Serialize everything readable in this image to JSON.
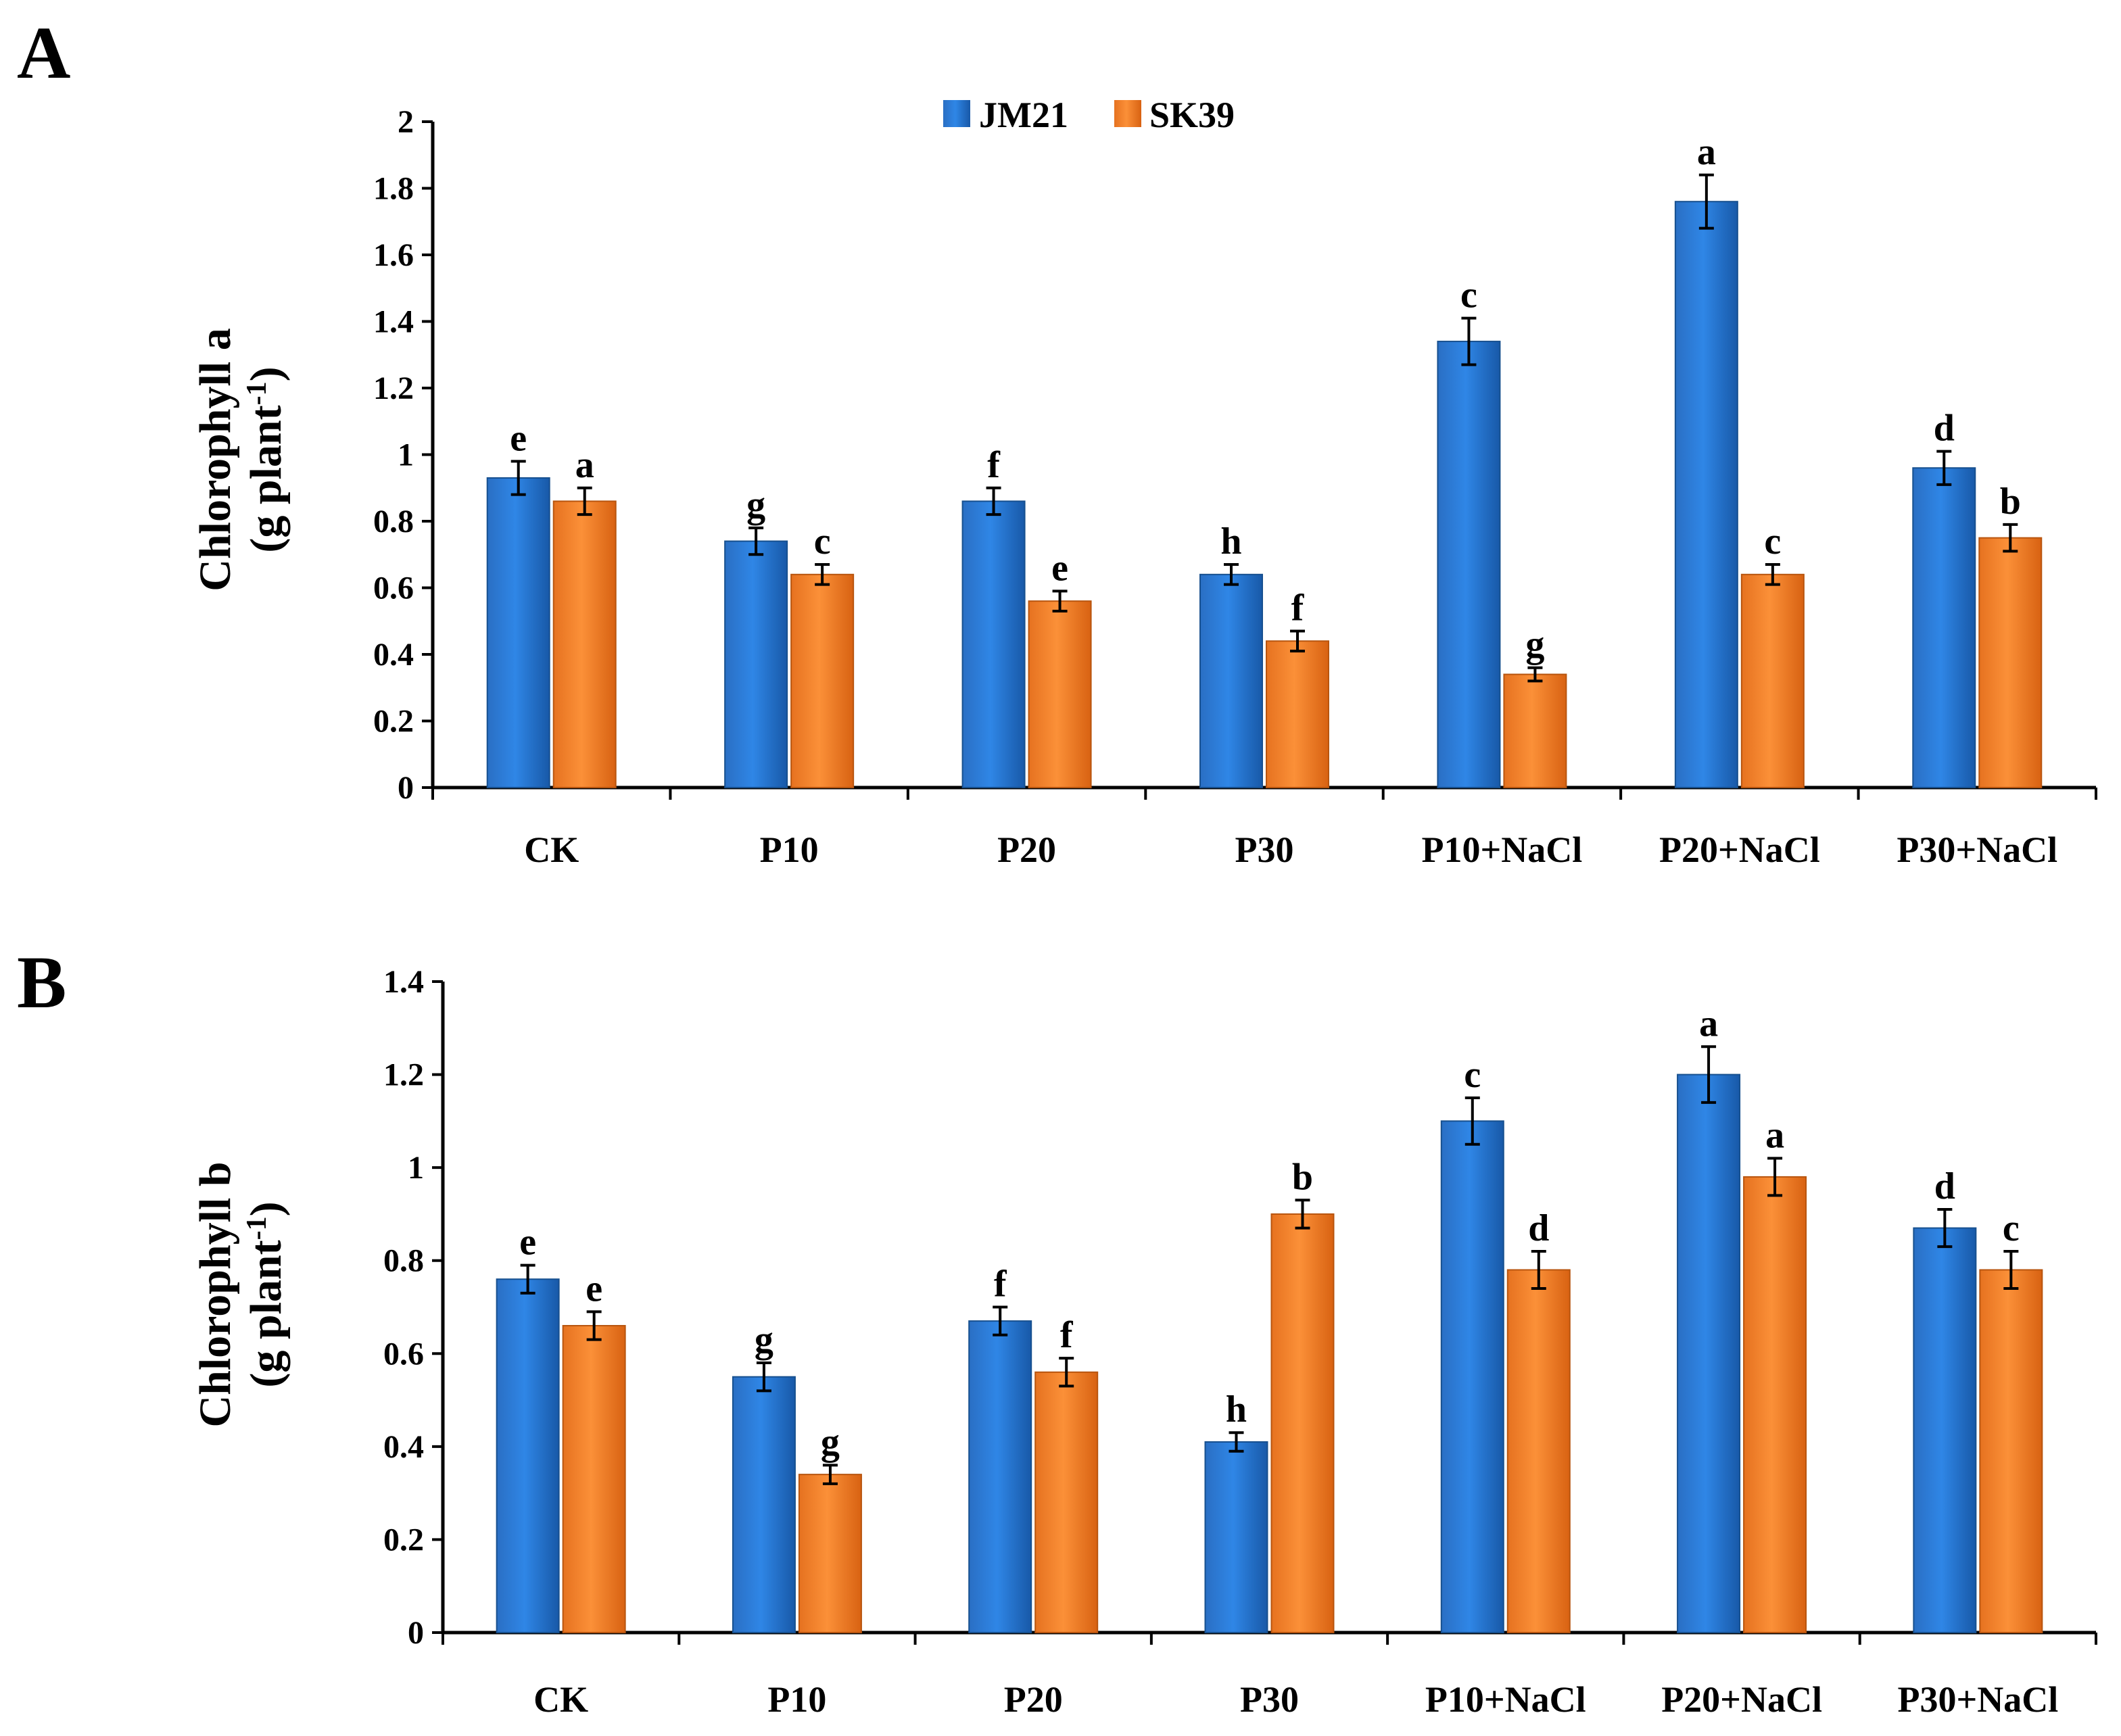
{
  "colors": {
    "JM21": "#1f6fce",
    "SK39": "#f7852a"
  },
  "legend": [
    "JM21",
    "SK39"
  ],
  "chart_data": [
    {
      "panel": "A",
      "type": "bar",
      "ylabel_line1": "Chlorophyll a",
      "ylabel_line2": "(g plant",
      "ylabel_sup": "-1",
      "ylabel_close": ")",
      "ylim": [
        0,
        2
      ],
      "yticks": [
        "0",
        "0.2",
        "0.4",
        "0.6",
        "0.8",
        "1",
        "1.2",
        "1.4",
        "1.6",
        "1.8",
        "2"
      ],
      "categories": [
        "CK",
        "P10",
        "P20",
        "P30",
        "P10+NaCl",
        "P20+NaCl",
        "P30+NaCl"
      ],
      "series": [
        {
          "name": "JM21",
          "values": [
            0.93,
            0.74,
            0.86,
            0.64,
            1.34,
            1.76,
            0.96
          ],
          "errors": [
            0.05,
            0.04,
            0.04,
            0.03,
            0.07,
            0.08,
            0.05
          ],
          "letters": [
            "e",
            "g",
            "f",
            "h",
            "c",
            "a",
            "d"
          ]
        },
        {
          "name": "SK39",
          "values": [
            0.86,
            0.64,
            0.56,
            0.44,
            0.34,
            0.64,
            0.75
          ],
          "errors": [
            0.04,
            0.03,
            0.03,
            0.03,
            0.02,
            0.03,
            0.04
          ],
          "letters": [
            "a",
            "c",
            "e",
            "f",
            "g",
            "c",
            "b"
          ]
        }
      ]
    },
    {
      "panel": "B",
      "type": "bar",
      "ylabel_line1": "Chlorophyll b",
      "ylabel_line2": "(g plant",
      "ylabel_sup": "-1",
      "ylabel_close": ")",
      "ylim": [
        0,
        1.4
      ],
      "yticks": [
        "0",
        "0.2",
        "0.4",
        "0.6",
        "0.8",
        "1",
        "1.2",
        "1.4"
      ],
      "categories": [
        "CK",
        "P10",
        "P20",
        "P30",
        "P10+NaCl",
        "P20+NaCl",
        "P30+NaCl"
      ],
      "series": [
        {
          "name": "JM21",
          "values": [
            0.76,
            0.55,
            0.67,
            0.41,
            1.1,
            1.2,
            0.87
          ],
          "errors": [
            0.03,
            0.03,
            0.03,
            0.02,
            0.05,
            0.06,
            0.04
          ],
          "letters": [
            "e",
            "g",
            "f",
            "h",
            "c",
            "a",
            "d"
          ]
        },
        {
          "name": "SK39",
          "values": [
            0.66,
            0.34,
            0.56,
            0.9,
            0.78,
            0.98,
            0.78
          ],
          "errors": [
            0.03,
            0.02,
            0.03,
            0.03,
            0.04,
            0.04,
            0.04
          ],
          "letters": [
            "e",
            "g",
            "f",
            "b",
            "d",
            "a",
            "c"
          ]
        }
      ]
    }
  ]
}
